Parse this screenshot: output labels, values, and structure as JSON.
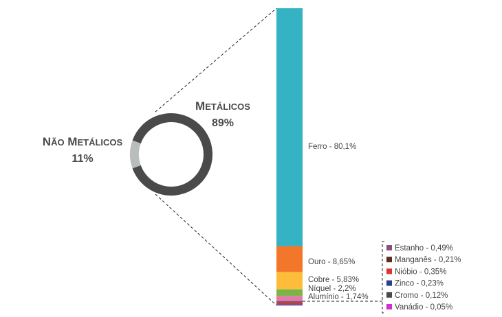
{
  "chart_data": {
    "type": "bar-of-pie",
    "pie": {
      "slices": [
        {
          "name": "Metálicos",
          "pct_label": "89%",
          "value": 89,
          "color": "#4a4a4a"
        },
        {
          "name": "Não Metálicos",
          "pct_label": "11%",
          "value": 11,
          "color": "#b9bebd"
        }
      ]
    },
    "bar": {
      "unit": "%",
      "segments": [
        {
          "name": "Ferro",
          "label": "Ferro - 80,1%",
          "value": 80.1,
          "color": "#35b2c3"
        },
        {
          "name": "Ouro",
          "label": "Ouro - 8,65%",
          "value": 8.65,
          "color": "#f3772b"
        },
        {
          "name": "Cobre",
          "label": "Cobre - 5,83%",
          "value": 5.83,
          "color": "#fdbd3a"
        },
        {
          "name": "Níquel",
          "label": "Níquel - 2,2%",
          "value": 2.2,
          "color": "#7ab548"
        },
        {
          "name": "Alumínio",
          "label": "Alumínio - 1,74%",
          "value": 1.74,
          "color": "#e07ca5"
        },
        {
          "name": "Estanho",
          "label": "Estanho - 0,49%",
          "value": 0.49,
          "color": "#8a4f7d"
        },
        {
          "name": "Manganês",
          "label": "Manganês - 0,21%",
          "value": 0.21,
          "color": "#5a2e1e"
        },
        {
          "name": "Nióbio",
          "label": "Nióbio - 0,35%",
          "value": 0.35,
          "color": "#e03232"
        },
        {
          "name": "Zinco",
          "label": "Zinco - 0,23%",
          "value": 0.23,
          "color": "#2b3f8c"
        },
        {
          "name": "Cromo",
          "label": "Cromo - 0,12%",
          "value": 0.12,
          "color": "#4a4a4a"
        },
        {
          "name": "Vanádio",
          "label": "Vanádio - 0,05%",
          "value": 0.05,
          "color": "#d030d0"
        }
      ]
    }
  }
}
